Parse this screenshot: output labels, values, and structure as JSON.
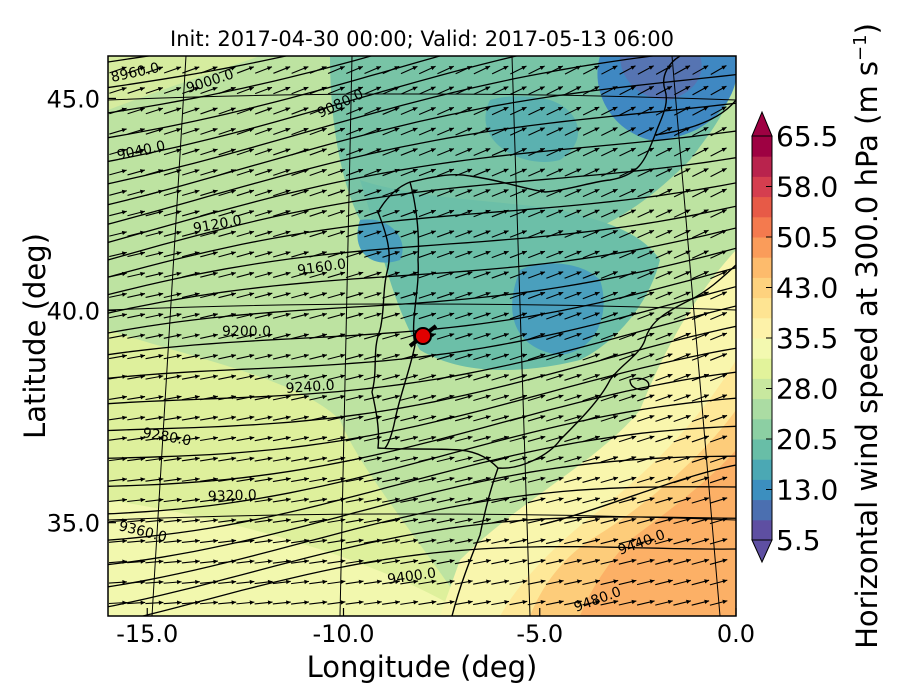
{
  "title": "Init: 2017-04-30 00:00; Valid: 2017-05-13 06:00",
  "xlabel": "Longitude (deg)",
  "ylabel": "Latitude (deg)",
  "colorbar": {
    "label_text": "Horizontal wind speed at 300.0 hPa (m s",
    "label_exp": "−1",
    "label_close": ")",
    "ticks": [
      "65.5",
      "58.0",
      "50.5",
      "43.0",
      "35.5",
      "28.0",
      "20.5",
      "13.0",
      "5.5"
    ],
    "colors": [
      "#5e4fa2",
      "#4b6fb0",
      "#3c8fbf",
      "#4ba8b4",
      "#68bea7",
      "#8ccfa3",
      "#abdca3",
      "#c8e89f",
      "#e2f39b",
      "#f3f9b0",
      "#fdf2a9",
      "#fee492",
      "#fed27e",
      "#fdbb6c",
      "#fa9c5a",
      "#f47a4e",
      "#e75a47",
      "#d53e4f",
      "#b9234d",
      "#9e0142"
    ],
    "extend": "both"
  },
  "chart_data": {
    "type": "heatmap",
    "title": "Init: 2017-04-30 00:00; Valid: 2017-05-13 06:00",
    "xlabel": "Longitude (deg)",
    "ylabel": "Latitude (deg)",
    "xticks": [
      "-15.0",
      "-10.0",
      "-5.0",
      "0.0"
    ],
    "yticks": [
      "45.0",
      "40.0",
      "35.0"
    ],
    "xlim": [
      -16,
      0
    ],
    "ylim": [
      32.8,
      46
    ],
    "field": "Horizontal wind speed at 300.0 hPa",
    "units": "m s-1",
    "colorbar_range": [
      5.5,
      65.5
    ],
    "contour_labels": [
      "8960.0",
      "9000.0",
      "9080.0",
      "9040.0",
      "9120.0",
      "9160.0",
      "9200.0",
      "9240.0",
      "9280.0",
      "9320.0",
      "9360.0",
      "9400.0",
      "9440.0",
      "9480.0"
    ],
    "wind_vectors": true,
    "marker": {
      "lon": -7.6,
      "lat": 39.3,
      "color": "#e00000"
    }
  }
}
